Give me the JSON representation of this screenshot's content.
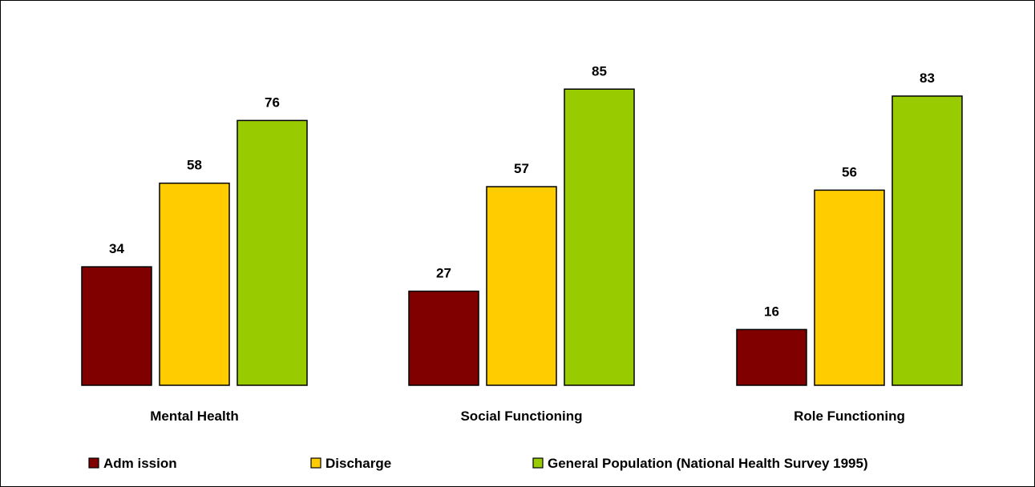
{
  "chart_data": {
    "type": "bar",
    "categories": [
      "Mental Health",
      "Social Functioning",
      "Role Functioning"
    ],
    "series": [
      {
        "name": "Adm ission",
        "color": "#800000",
        "values": [
          34,
          27,
          16
        ]
      },
      {
        "name": "Discharge",
        "color": "#FFCC00",
        "values": [
          58,
          57,
          56
        ]
      },
      {
        "name": "General Population (National Health Survey 1995)",
        "color": "#99CC00",
        "values": [
          76,
          85,
          83
        ]
      }
    ],
    "ylim": [
      0,
      100
    ],
    "grid": false,
    "legend_position": "bottom",
    "data_labels": true
  }
}
